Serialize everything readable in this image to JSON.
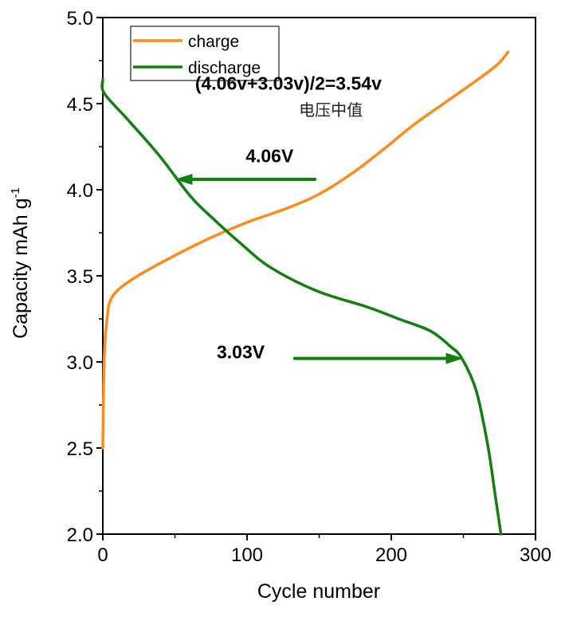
{
  "chart_data": {
    "type": "line",
    "title": "",
    "xlabel": "Cycle number",
    "ylabel": "Capacity mAh g",
    "ylabel_superscript": "-1",
    "xlim": [
      0,
      300
    ],
    "ylim": [
      2.0,
      5.0
    ],
    "x_ticks": [
      0,
      100,
      200,
      300
    ],
    "x_tick_labels": [
      "0",
      "100",
      "200",
      "300"
    ],
    "x_minor_ticks": [
      50,
      150,
      250
    ],
    "y_ticks": [
      2.0,
      2.5,
      3.0,
      3.5,
      4.0,
      4.5,
      5.0
    ],
    "y_tick_labels": [
      "2.0",
      "2.5",
      "3.0",
      "3.5",
      "4.0",
      "4.5",
      "5.0"
    ],
    "y_minor_ticks": [
      2.25,
      2.75,
      3.25,
      3.75,
      4.25,
      4.75
    ],
    "grid": false,
    "legend_position": "top-left",
    "series": [
      {
        "name": "charge",
        "color": "#ff8c1a",
        "x": [
          0,
          1,
          3,
          6,
          17,
          39,
          72,
          100,
          127,
          149,
          172,
          194,
          216,
          238,
          260,
          274,
          281
        ],
        "y": [
          2.5,
          3.02,
          3.25,
          3.37,
          3.46,
          3.57,
          3.71,
          3.81,
          3.89,
          3.97,
          4.09,
          4.23,
          4.38,
          4.51,
          4.64,
          4.73,
          4.8
        ]
      },
      {
        "name": "discharge",
        "color": "#118011",
        "x": [
          0,
          1,
          17,
          39,
          61,
          78,
          94,
          116,
          149,
          183,
          205,
          227,
          241,
          249,
          259,
          267,
          272,
          276
        ],
        "y": [
          4.64,
          4.56,
          4.41,
          4.2,
          3.96,
          3.82,
          3.7,
          3.55,
          3.41,
          3.32,
          3.25,
          3.18,
          3.09,
          3.02,
          2.83,
          2.51,
          2.23,
          2.0
        ]
      }
    ],
    "annotations": [
      {
        "text": "(4.06v+3.03v)/2=3.54v",
        "style": "bold",
        "anchor_x": 64,
        "anchor_y": 4.58
      },
      {
        "text": "电压中值",
        "style": "normal",
        "anchor_x": 136,
        "anchor_y": 4.43
      },
      {
        "text": "4.06V",
        "style": "bold",
        "anchor_x": 99,
        "anchor_y": 4.16
      },
      {
        "text": "3.03V",
        "style": "bold",
        "anchor_x": 79,
        "anchor_y": 3.02
      }
    ],
    "arrows": [
      {
        "label": "4.06V",
        "from": [
          147,
          4.06
        ],
        "to": [
          50,
          4.06
        ],
        "color": "#118011"
      },
      {
        "label": "3.03V",
        "from": [
          133,
          3.02
        ],
        "to": [
          250,
          3.02
        ],
        "color": "#118011"
      }
    ]
  }
}
